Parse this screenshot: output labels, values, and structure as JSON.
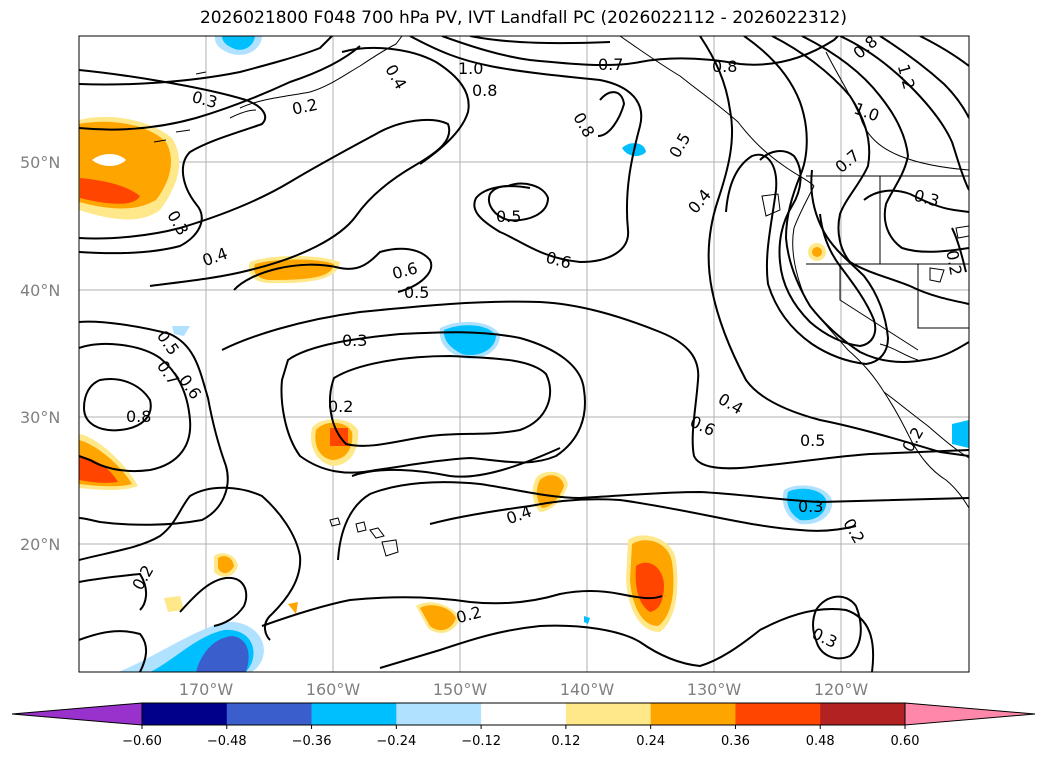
{
  "title": "2026021800 F048 700 hPa PV, IVT Landfall PC (2026022112 - 2026022312)",
  "axes": {
    "lat_labels": [
      "50°N",
      "40°N",
      "30°N",
      "20°N"
    ],
    "lon_labels": [
      "170°W",
      "160°W",
      "150°W",
      "140°W",
      "130°W",
      "120°W"
    ]
  },
  "colorbar": {
    "ticks": [
      "−0.60",
      "−0.48",
      "−0.36",
      "−0.24",
      "−0.12",
      "0.12",
      "0.24",
      "0.36",
      "0.48",
      "0.60"
    ],
    "colors": [
      "#9932cc",
      "#00008b",
      "#3a5fcd",
      "#00bfff",
      "#b0e2ff",
      "#ffffff",
      "#ffe88a",
      "#ffa500",
      "#ff4500",
      "#b22222",
      "#ff88aa"
    ]
  },
  "contour_labels": [
    "0.3",
    "0.2",
    "0.4",
    "1.0",
    "0.8",
    "0.7",
    "0.8",
    "0.8",
    "1.2",
    "0.8",
    "0.5",
    "1.0",
    "0.5",
    "0.4",
    "0.7",
    "0.3",
    "0.3",
    "0.4",
    "0.6",
    "0.5",
    "0.6",
    "0.2",
    "0.5",
    "0.7",
    "0.6",
    "0.8",
    "0.3",
    "0.2",
    "0.4",
    "0.6",
    "0.5",
    "0.2",
    "0.4",
    "0.3",
    "0.2",
    "0.2",
    "0.2",
    "0.3"
  ]
}
